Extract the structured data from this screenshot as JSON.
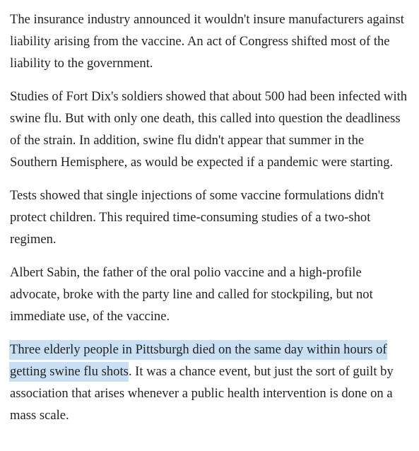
{
  "article": {
    "paragraphs": [
      "The insurance industry announced it wouldn't insure manufacturers against liability arising from the vaccine. An act of Congress shifted most of the liability to the government.",
      "Studies of Fort Dix's soldiers showed that about 500 had been infected with swine flu. But with only one death, this called into question the deadliness of the strain. In addition, swine flu didn't appear that summer in the Southern Hemisphere, as would be expected if a pandemic were starting.",
      "Tests showed that single injections of some vaccine formulations didn't protect children. This required time-consuming studies of a two-shot regimen.",
      "Albert Sabin, the father of the oral polio vaccine and a high-profile advocate, broke with the party line and called for stockpiling, but not immediate use, of the vaccine."
    ],
    "last_paragraph": {
      "highlighted": "Three elderly people in Pittsburgh died on the same day within hours of getting swine flu shots",
      "rest": ". It was a chance event, but just the sort of guilt by association that arises whenever a public health intervention is done on a mass scale."
    },
    "highlight_color": "#c9dff4",
    "text_color": "#222222"
  }
}
